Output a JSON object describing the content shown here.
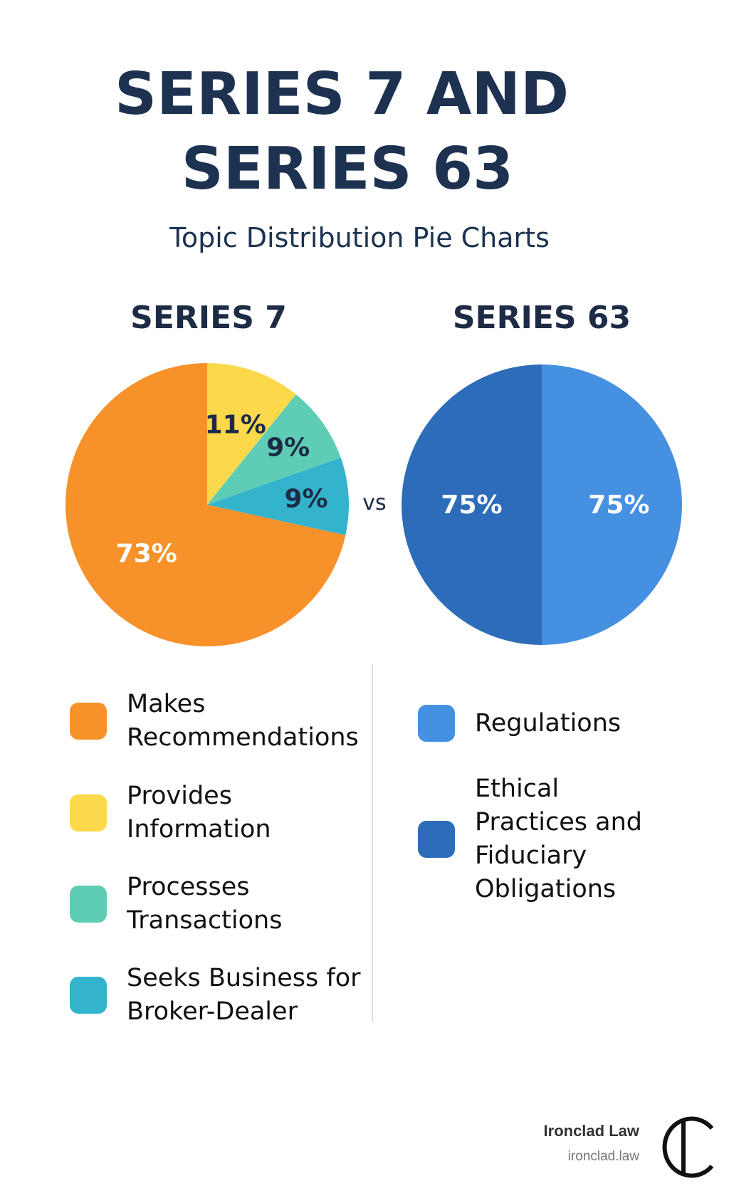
{
  "title": [
    "SERIES 7 AND",
    "SERIES 63"
  ],
  "subtitle": "Topic Distribution Pie Charts",
  "separator": "vs",
  "brand": {
    "name": "Ironclad Law",
    "url": "ironclad.law"
  },
  "chart_data": [
    {
      "type": "pie",
      "title": "SERIES 7",
      "categories": [
        "Makes Recommendations",
        "Provides Information",
        "Processes Transactions",
        "Seeks Business for Broker-Dealer"
      ],
      "values": [
        73,
        11,
        9,
        9
      ],
      "value_labels": [
        "73%",
        "11%",
        "9%",
        "9%"
      ],
      "colors": [
        "#f7922b",
        "#fcd94a",
        "#5fcdb5",
        "#33b4cc"
      ]
    },
    {
      "type": "pie",
      "title": "SERIES 63",
      "categories": [
        "Regulations",
        "Ethical Practices and Fiduciary Obligations"
      ],
      "values": [
        75,
        75
      ],
      "value_labels": [
        "75%",
        "75%"
      ],
      "colors": [
        "#4590e0",
        "#2d6cb8"
      ]
    }
  ]
}
